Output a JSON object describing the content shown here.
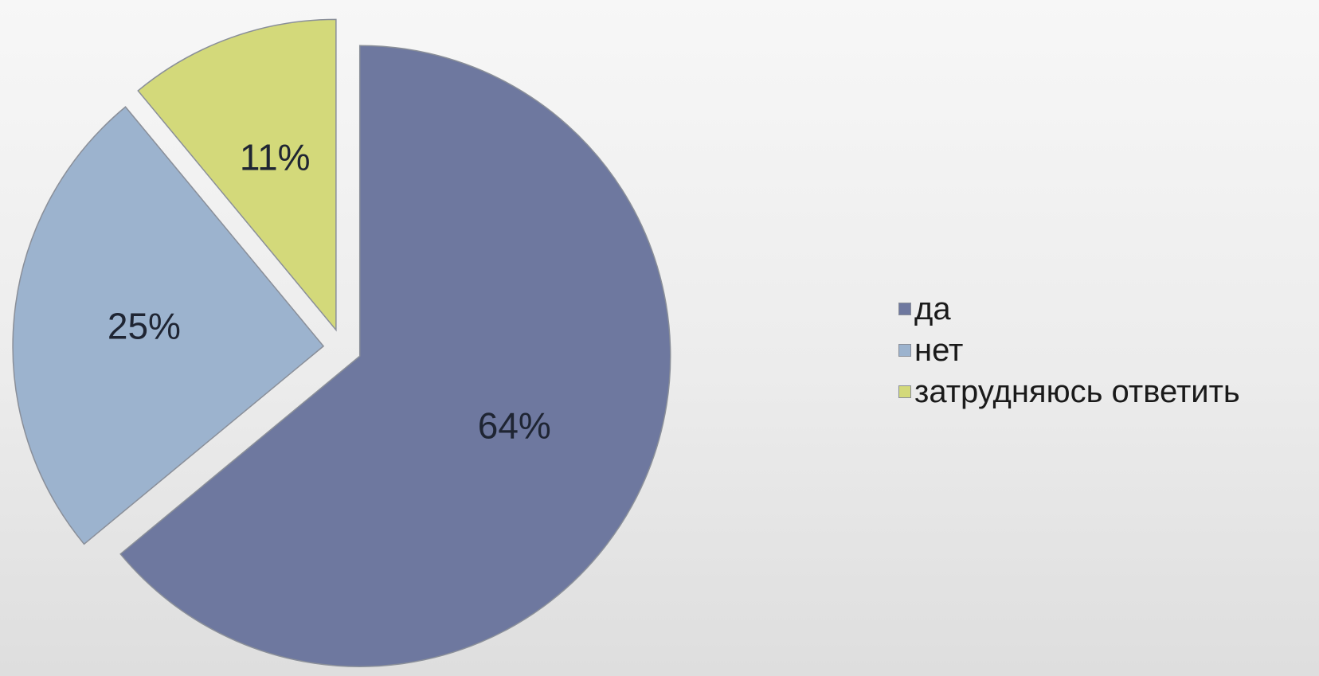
{
  "chart_data": {
    "type": "pie",
    "categories": [
      "да",
      "нет",
      "затрудняюсь ответить"
    ],
    "values": [
      64,
      25,
      11
    ],
    "labels": [
      "64%",
      "25%",
      "11%"
    ],
    "colors": [
      "#6e789f",
      "#9cb3ce",
      "#d3d97a"
    ],
    "exploded": true,
    "start_angle_deg": 0,
    "direction": "clockwise",
    "legend_position": "right"
  },
  "legend": {
    "items": [
      {
        "label": "да",
        "color": "#6e789f"
      },
      {
        "label": "нет",
        "color": "#9cb3ce"
      },
      {
        "label": "затрудняюсь ответить",
        "color": "#d3d97a"
      }
    ]
  }
}
